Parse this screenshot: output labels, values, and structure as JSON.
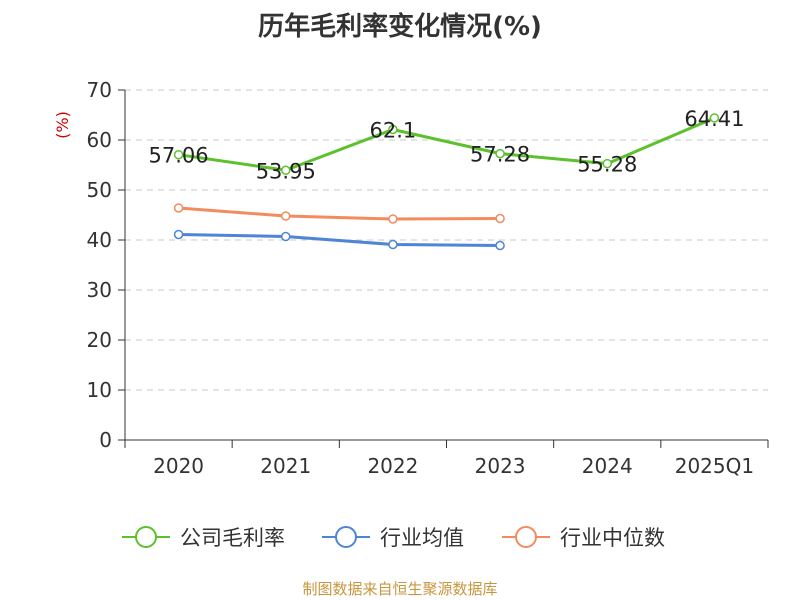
{
  "chart_data": {
    "type": "line",
    "title": "历年毛利率变化情况(%)",
    "ylabel": "(%)",
    "categories": [
      "2020",
      "2021",
      "2022",
      "2023",
      "2024",
      "2025Q1"
    ],
    "ylim": [
      0,
      70
    ],
    "yticks": [
      0,
      10,
      20,
      30,
      40,
      50,
      60,
      70
    ],
    "grid": true,
    "legend_position": "bottom",
    "series": [
      {
        "name": "公司毛利率",
        "color": "#5cc12c",
        "values": [
          57.06,
          53.95,
          62.1,
          57.28,
          55.28,
          64.41
        ],
        "labels": [
          "57.06",
          "53.95",
          "62.1",
          "57.28",
          "55.28",
          "64.41"
        ]
      },
      {
        "name": "行业均值",
        "color": "#4e85d6",
        "values": [
          41.1,
          40.7,
          39.1,
          38.9,
          null,
          null
        ],
        "labels": []
      },
      {
        "name": "行业中位数",
        "color": "#f48b5e",
        "values": [
          46.4,
          44.8,
          44.2,
          44.3,
          null,
          null
        ],
        "labels": []
      }
    ]
  },
  "ylabel_color": "#cc0000",
  "source_text": "制图数据来自恒生聚源数据库",
  "source_color": "#c8963c"
}
